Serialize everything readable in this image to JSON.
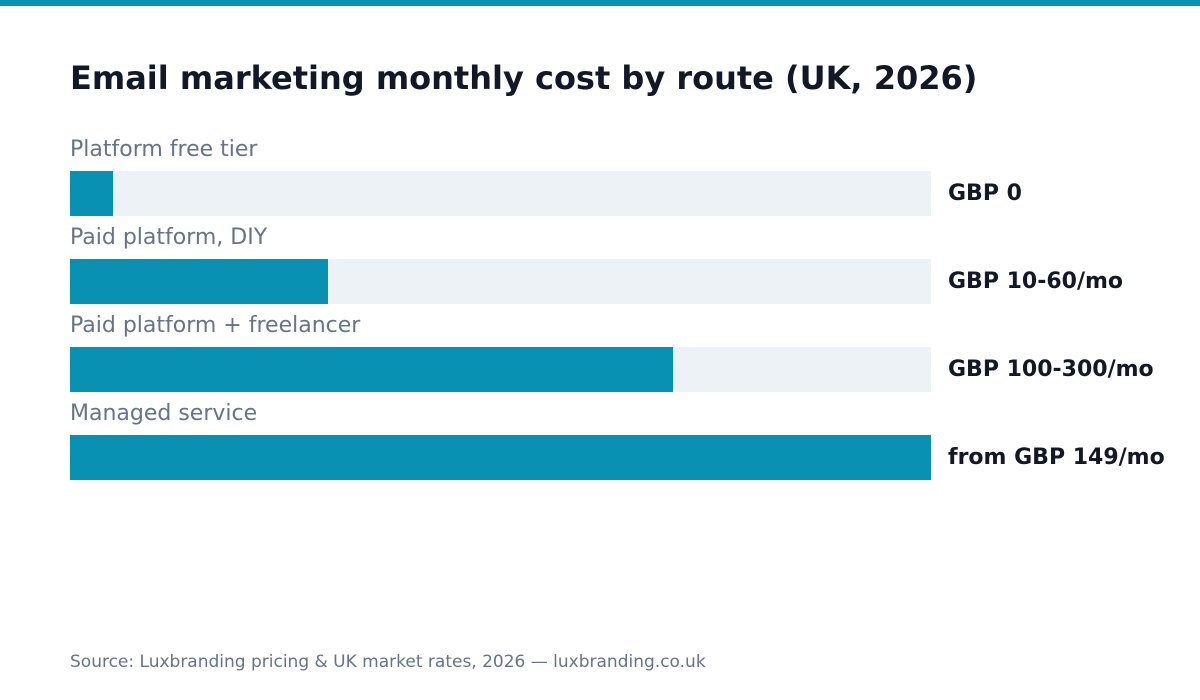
{
  "colors": {
    "accent": "#0891b2",
    "track": "#edf2f7",
    "title": "#111827",
    "muted": "#64748b"
  },
  "chart_data": {
    "type": "bar",
    "orientation": "horizontal",
    "title": "Email marketing monthly cost by route (UK, 2026)",
    "categories": [
      "Platform free tier",
      "Paid platform, DIY",
      "Paid platform + freelancer",
      "Managed service"
    ],
    "value_labels": [
      "GBP 0",
      "GBP 10-60/mo",
      "GBP 100-300/mo",
      "from GBP 149/mo"
    ],
    "values": [
      0.05,
      0.3,
      0.7,
      1.0
    ],
    "value_scale": "relative fill of bar track (0-1)",
    "xlim": [
      0,
      1
    ],
    "grid": false,
    "legend": "none"
  },
  "footer": {
    "source": "Source: Luxbranding pricing & UK market rates, 2026 — luxbranding.co.uk"
  }
}
